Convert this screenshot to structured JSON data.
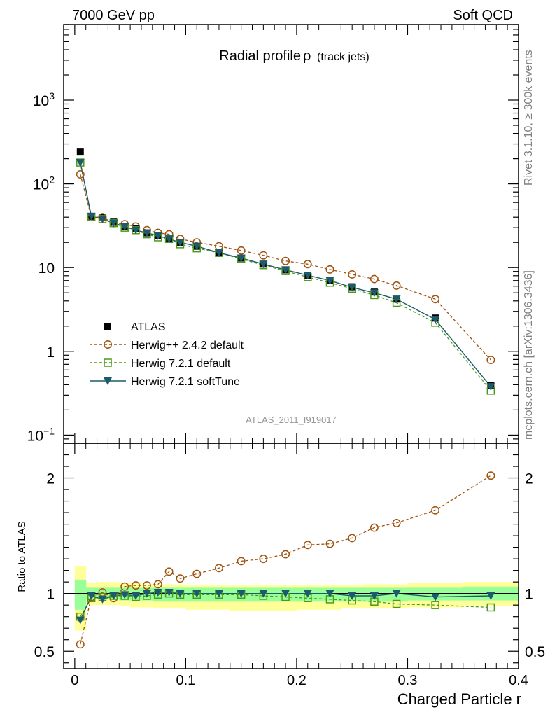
{
  "header": {
    "left": "7000 GeV pp",
    "right": "Soft QCD"
  },
  "side_labels": {
    "rivet": "Rivet 3.1.10, ≥ 300k events",
    "mcplots": "mcplots.cern.ch [arXiv:1306.3436]"
  },
  "colors": {
    "atlas": "#000000",
    "herwigpp": "#a0520f",
    "herwig721": "#4a9a1a",
    "softtune": "#1e5a6e",
    "band_outer": "#ffff99",
    "band_inner": "#99ff99"
  },
  "chart_data": [
    {
      "type": "scatter",
      "title": "Radial profile",
      "title_symbol": "ρ",
      "title_suffix": "(track jets)",
      "watermark": "ATLAS_2011_I919017",
      "yscale": "log",
      "ylim": [
        0.08,
        8000
      ],
      "xlim": [
        -0.01,
        0.4
      ],
      "yticks": [
        {
          "value": 0.1,
          "label": "10",
          "sup": "−1"
        },
        {
          "value": 1,
          "label": "1",
          "sup": ""
        },
        {
          "value": 10,
          "label": "10",
          "sup": ""
        },
        {
          "value": 100,
          "label": "10",
          "sup": "2"
        },
        {
          "value": 1000,
          "label": "10",
          "sup": "3"
        }
      ],
      "legend_position": "lower-left",
      "x": [
        0.005,
        0.015,
        0.025,
        0.035,
        0.045,
        0.055,
        0.065,
        0.075,
        0.085,
        0.095,
        0.11,
        0.13,
        0.15,
        0.17,
        0.19,
        0.21,
        0.23,
        0.25,
        0.27,
        0.29,
        0.325,
        0.375
      ],
      "series": [
        {
          "key": "atlas",
          "name": "ATLAS",
          "marker": "square-filled",
          "line": "none",
          "values": [
            240,
            41,
            40,
            35,
            31,
            29,
            26,
            24,
            22,
            20,
            18,
            15,
            13,
            11,
            9.4,
            8.1,
            7.0,
            5.9,
            5.1,
            4.2,
            2.5,
            0.39
          ]
        },
        {
          "key": "herwigpp",
          "name": "Herwig++ 2.4.2 default",
          "marker": "circle-open",
          "line": "dashed",
          "values": [
            130,
            40,
            40,
            34,
            33,
            31,
            28,
            26,
            25,
            22,
            20,
            18,
            16,
            14,
            12,
            11,
            9.5,
            8.3,
            7.3,
            6.1,
            4.2,
            0.79
          ]
        },
        {
          "key": "herwig721",
          "name": "Herwig 7.2.1 default",
          "marker": "square-open",
          "line": "dashed",
          "values": [
            180,
            40,
            38,
            34,
            30,
            28,
            25,
            23,
            22,
            19,
            17,
            15,
            12.7,
            10.7,
            9.1,
            7.7,
            6.6,
            5.6,
            4.7,
            3.8,
            2.2,
            0.34
          ]
        },
        {
          "key": "softtune",
          "name": "Herwig 7.2.1 softTune",
          "marker": "triangle-down-filled",
          "line": "solid",
          "values": [
            180,
            41,
            38,
            34,
            31,
            28,
            26,
            24,
            22,
            20,
            18,
            15,
            13,
            11,
            9.4,
            8.1,
            7.0,
            5.8,
            5.0,
            4.2,
            2.4,
            0.38
          ]
        }
      ]
    },
    {
      "type": "scatter",
      "ylabel": "Ratio to ATLAS",
      "xlabel": "Charged Particle r",
      "ylim": [
        0.35,
        2.3
      ],
      "xlim": [
        -0.01,
        0.4
      ],
      "yticks": [
        0.5,
        1,
        2
      ],
      "ytick_labels": [
        "0.5",
        "1",
        "2"
      ],
      "xticks": [
        0,
        0.1,
        0.2,
        0.3,
        0.4
      ],
      "xtick_labels": [
        "0",
        "0.1",
        "0.2",
        "0.3",
        "0.4"
      ],
      "x": [
        0.005,
        0.015,
        0.025,
        0.035,
        0.045,
        0.055,
        0.065,
        0.075,
        0.085,
        0.095,
        0.11,
        0.13,
        0.15,
        0.17,
        0.19,
        0.21,
        0.23,
        0.25,
        0.27,
        0.29,
        0.325,
        0.375
      ],
      "bin_edges": [
        0,
        0.01,
        0.02,
        0.03,
        0.04,
        0.05,
        0.06,
        0.07,
        0.08,
        0.09,
        0.1,
        0.12,
        0.14,
        0.16,
        0.18,
        0.2,
        0.22,
        0.24,
        0.26,
        0.28,
        0.3,
        0.35,
        0.4
      ],
      "band_outer": [
        [
          0.68,
          1.24
        ],
        [
          0.9,
          1.09
        ],
        [
          0.9,
          1.1
        ],
        [
          0.9,
          1.1
        ],
        [
          0.89,
          1.09
        ],
        [
          0.88,
          1.09
        ],
        [
          0.88,
          1.08
        ],
        [
          0.87,
          1.08
        ],
        [
          0.87,
          1.08
        ],
        [
          0.87,
          1.08
        ],
        [
          0.86,
          1.07
        ],
        [
          0.86,
          1.07
        ],
        [
          0.85,
          1.07
        ],
        [
          0.85,
          1.07
        ],
        [
          0.85,
          1.07
        ],
        [
          0.86,
          1.07
        ],
        [
          0.86,
          1.07
        ],
        [
          0.87,
          1.07
        ],
        [
          0.87,
          1.08
        ],
        [
          0.87,
          1.08
        ],
        [
          0.88,
          1.09
        ],
        [
          0.89,
          1.1
        ]
      ],
      "band_inner": [
        [
          0.86,
          1.12
        ],
        [
          0.95,
          1.05
        ],
        [
          0.95,
          1.05
        ],
        [
          0.95,
          1.05
        ],
        [
          0.94,
          1.05
        ],
        [
          0.94,
          1.05
        ],
        [
          0.94,
          1.05
        ],
        [
          0.93,
          1.05
        ],
        [
          0.93,
          1.05
        ],
        [
          0.93,
          1.05
        ],
        [
          0.93,
          1.05
        ],
        [
          0.93,
          1.05
        ],
        [
          0.93,
          1.05
        ],
        [
          0.93,
          1.05
        ],
        [
          0.93,
          1.05
        ],
        [
          0.93,
          1.05
        ],
        [
          0.93,
          1.05
        ],
        [
          0.93,
          1.05
        ],
        [
          0.93,
          1.05
        ],
        [
          0.93,
          1.05
        ],
        [
          0.94,
          1.05
        ],
        [
          0.94,
          1.06
        ]
      ],
      "series": [
        {
          "key": "herwigpp",
          "name": "Herwig++ 2.4.2 default",
          "marker": "circle-open",
          "line": "dashed",
          "values": [
            0.56,
            0.97,
            1.01,
            0.96,
            1.06,
            1.07,
            1.07,
            1.08,
            1.19,
            1.13,
            1.17,
            1.22,
            1.28,
            1.3,
            1.34,
            1.42,
            1.43,
            1.48,
            1.57,
            1.61,
            1.72,
            2.02
          ]
        },
        {
          "key": "herwig721",
          "name": "Herwig 7.2.1 default",
          "marker": "square-open",
          "line": "dashed",
          "values": [
            0.8,
            0.96,
            0.97,
            0.98,
            0.98,
            0.97,
            0.98,
            0.99,
            1.0,
            0.99,
            0.99,
            0.99,
            0.99,
            0.98,
            0.97,
            0.96,
            0.95,
            0.94,
            0.93,
            0.91,
            0.9,
            0.88
          ]
        },
        {
          "key": "softtune",
          "name": "Herwig 7.2.1 softTune",
          "marker": "triangle-down-filled",
          "line": "solid",
          "values": [
            0.77,
            0.98,
            0.95,
            0.98,
            0.99,
            0.98,
            1.0,
            1.01,
            1.01,
            1.0,
            1.0,
            1.0,
            1.0,
            1.0,
            1.0,
            1.0,
            1.0,
            0.98,
            0.98,
            1.0,
            0.97,
            0.98
          ]
        }
      ]
    }
  ]
}
